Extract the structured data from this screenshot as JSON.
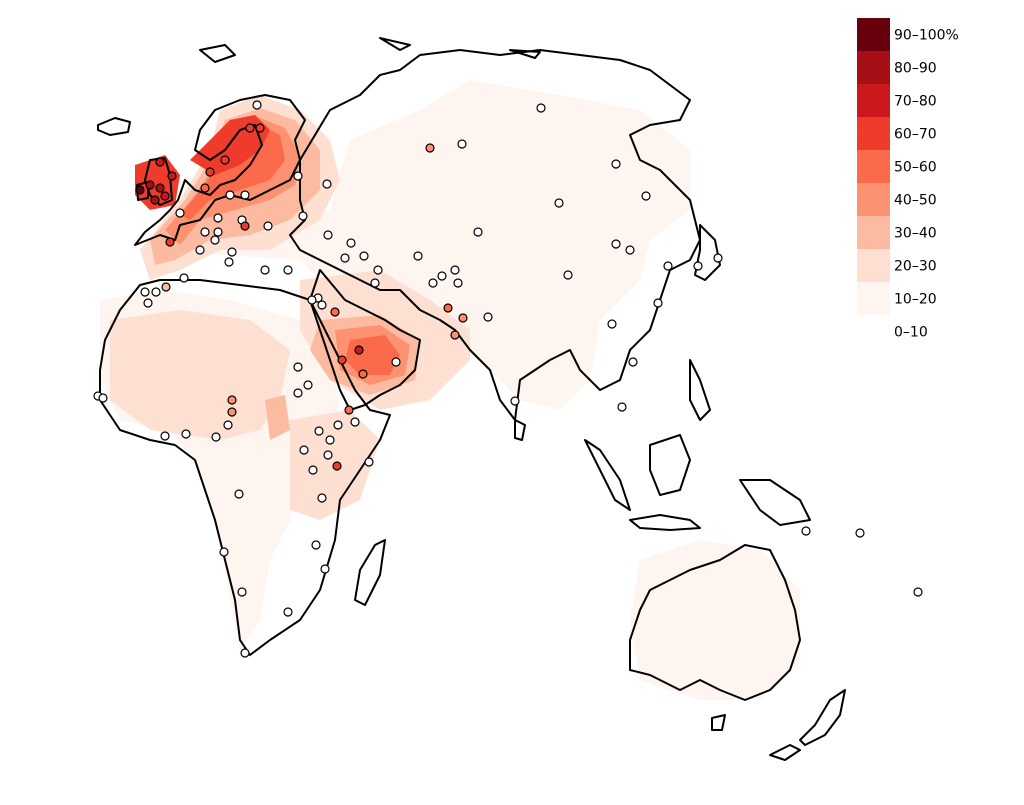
{
  "legend": {
    "items": [
      {
        "label": "90–100%",
        "color": "#67000d"
      },
      {
        "label": "80–90",
        "color": "#a50f15"
      },
      {
        "label": "70–80",
        "color": "#cb181d"
      },
      {
        "label": "60–70",
        "color": "#ef3b2c"
      },
      {
        "label": "50–60",
        "color": "#fb6a4a"
      },
      {
        "label": "40–50",
        "color": "#fc9272"
      },
      {
        "label": "30–40",
        "color": "#fcbba1"
      },
      {
        "label": "20–30",
        "color": "#fee0d2"
      },
      {
        "label": "10–20",
        "color": "#fff5f0"
      },
      {
        "label": "0–10",
        "color": "#ffffff"
      }
    ]
  },
  "sample_points": {
    "default_fill": "#ffffff",
    "stroke": "#000000"
  }
}
